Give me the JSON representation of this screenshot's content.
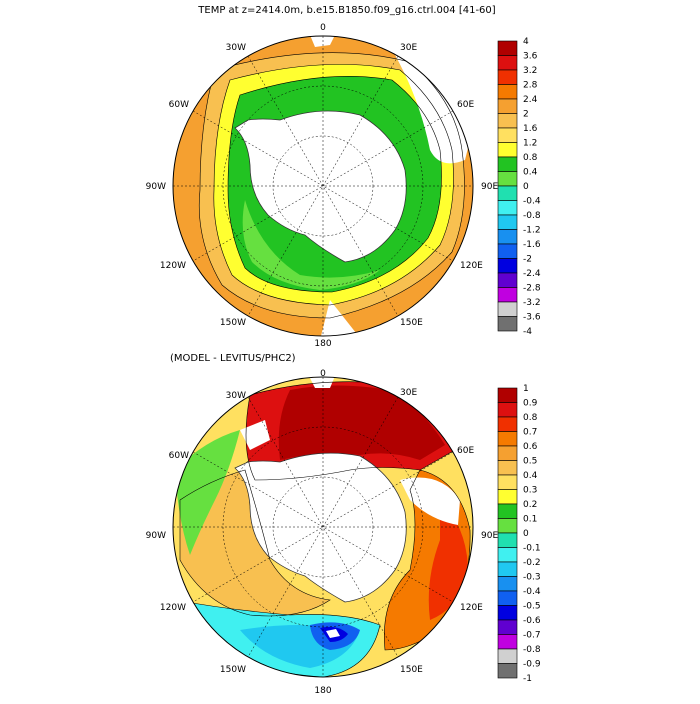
{
  "panels": [
    {
      "title": "TEMP at z=2414.0m, b.e15.B1850.f09_g16.ctrl.004 [41-60]",
      "longitude_labels": [
        "0",
        "30E",
        "60E",
        "90E",
        "120E",
        "150E",
        "180",
        "150W",
        "120W",
        "90W",
        "60W",
        "30W"
      ],
      "colorbar": {
        "labels": [
          "4",
          "3.6",
          "3.2",
          "2.8",
          "2.4",
          "2",
          "1.6",
          "1.2",
          "0.8",
          "0.4",
          "0",
          "-0.4",
          "-0.8",
          "-1.2",
          "-1.6",
          "-2",
          "-2.4",
          "-2.8",
          "-3.2",
          "-3.6",
          "-4"
        ],
        "colors": [
          "#b00000",
          "#dd1010",
          "#f03000",
          "#f57a00",
          "#f5a030",
          "#f8c050",
          "#ffe060",
          "#ffff30",
          "#22c322",
          "#66e040",
          "#20e0b0",
          "#40f0f0",
          "#20c8f0",
          "#1890f0",
          "#1060f0",
          "#0000e0",
          "#6000d0",
          "#c000e0",
          "#d0d0d0",
          "#707070"
        ]
      }
    },
    {
      "title": "(MODEL - LEVITUS/PHC2)",
      "longitude_labels": [
        "0",
        "30E",
        "60E",
        "90E",
        "120E",
        "150E",
        "180",
        "150W",
        "120W",
        "90W",
        "60W",
        "30W"
      ],
      "colorbar": {
        "labels": [
          "1",
          "0.9",
          "0.8",
          "0.7",
          "0.6",
          "0.5",
          "0.4",
          "0.3",
          "0.2",
          "0.1",
          "0",
          "-0.1",
          "-0.2",
          "-0.3",
          "-0.4",
          "-0.5",
          "-0.6",
          "-0.7",
          "-0.8",
          "-0.9",
          "-1"
        ],
        "colors": [
          "#b00000",
          "#dd1010",
          "#f03000",
          "#f57a00",
          "#f5a030",
          "#f8c050",
          "#ffe060",
          "#ffff30",
          "#22c322",
          "#66e040",
          "#20e0b0",
          "#40f0f0",
          "#20c8f0",
          "#1890f0",
          "#1060f0",
          "#0000e0",
          "#6000d0",
          "#c000e0",
          "#d0d0d0",
          "#707070"
        ]
      }
    }
  ]
}
